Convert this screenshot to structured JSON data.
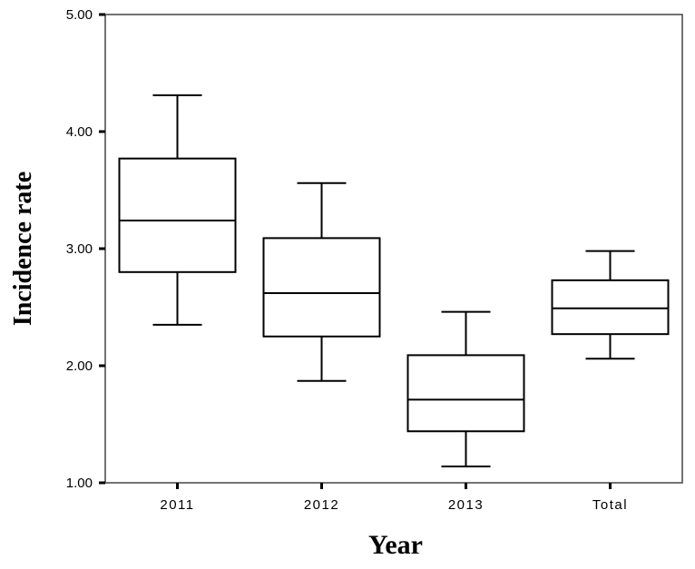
{
  "chart_data": {
    "type": "box",
    "xlabel": "Year",
    "ylabel": "Incidence rate",
    "ylim": [
      1.0,
      5.0
    ],
    "yticks": [
      "1.00",
      "2.00",
      "3.00",
      "4.00",
      "5.00"
    ],
    "ytick_values": [
      1.0,
      2.0,
      3.0,
      4.0,
      5.0
    ],
    "categories": [
      "2011",
      "2012",
      "2013",
      "Total"
    ],
    "boxes": [
      {
        "category": "2011",
        "min": 2.35,
        "q1": 2.8,
        "median": 3.24,
        "q3": 3.77,
        "max": 4.31
      },
      {
        "category": "2012",
        "min": 1.87,
        "q1": 2.25,
        "median": 2.62,
        "q3": 3.09,
        "max": 3.56
      },
      {
        "category": "2013",
        "min": 1.14,
        "q1": 1.44,
        "median": 1.71,
        "q3": 2.09,
        "max": 2.46
      },
      {
        "category": "Total",
        "min": 2.06,
        "q1": 2.27,
        "median": 2.49,
        "q3": 2.73,
        "max": 2.98
      }
    ],
    "grid": false,
    "colors": {
      "box_fill": "#ffffff",
      "line": "#000000",
      "frame": "#444444"
    }
  }
}
